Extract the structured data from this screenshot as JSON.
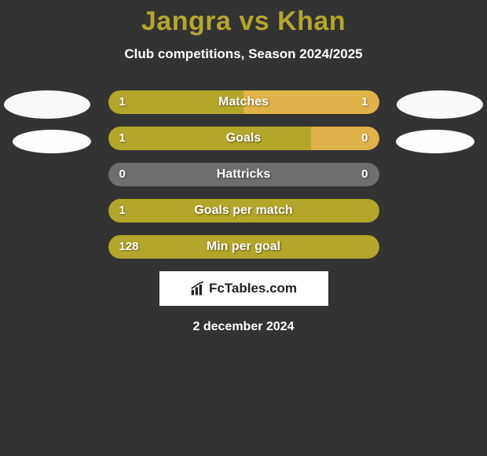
{
  "title": "Jangra vs Khan",
  "subtitle": "Club competitions, Season 2024/2025",
  "colors": {
    "primary": "#b3a72b",
    "secondary": "#e0b24a",
    "neutral": "#6e6e6e",
    "background": "#333333",
    "text": "#ffffff"
  },
  "stats": [
    {
      "label": "Matches",
      "left_value": "1",
      "right_value": "1",
      "left_pct": 50,
      "right_pct": 50,
      "left_color": "#b3a72b",
      "right_color": "#e0b24a",
      "show_right_value": true
    },
    {
      "label": "Goals",
      "left_value": "1",
      "right_value": "0",
      "left_pct": 75,
      "right_pct": 25,
      "left_color": "#b3a72b",
      "right_color": "#e0b24a",
      "show_right_value": true
    },
    {
      "label": "Hattricks",
      "left_value": "0",
      "right_value": "0",
      "left_pct": 100,
      "right_pct": 0,
      "left_color": "#6e6e6e",
      "right_color": "#6e6e6e",
      "show_right_value": true
    },
    {
      "label": "Goals per match",
      "left_value": "1",
      "right_value": "",
      "left_pct": 100,
      "right_pct": 0,
      "left_color": "#b3a72b",
      "right_color": "#b3a72b",
      "show_right_value": false
    },
    {
      "label": "Min per goal",
      "left_value": "128",
      "right_value": "",
      "left_pct": 100,
      "right_pct": 0,
      "left_color": "#b3a72b",
      "right_color": "#b3a72b",
      "show_right_value": false
    }
  ],
  "brand": "FcTables.com",
  "date": "2 december 2024"
}
